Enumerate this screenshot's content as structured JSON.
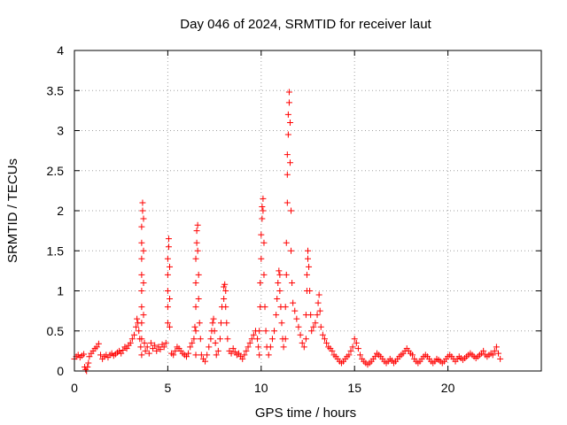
{
  "chart_data": {
    "type": "scatter",
    "title": "Day 046 of 2024, SRMTID for receiver laut",
    "xlabel": "GPS time / hours",
    "ylabel": "SRMTID / TECUs",
    "xlim": [
      0,
      25
    ],
    "ylim": [
      0,
      4
    ],
    "xticks": [
      0,
      5,
      10,
      15,
      20
    ],
    "xtick_labels": [
      "0",
      "5",
      "10",
      "15",
      "20"
    ],
    "yticks": [
      0,
      0.5,
      1,
      1.5,
      2,
      2.5,
      3,
      3.5,
      4
    ],
    "ytick_labels": [
      "0",
      "0.5",
      "1",
      "1.5",
      "2",
      "2.5",
      "3",
      "3.5",
      "4"
    ],
    "grid": true,
    "marker": "+",
    "color": "#ff0000",
    "series": [
      {
        "name": "SRMTID",
        "points": [
          [
            0.0,
            0.15
          ],
          [
            0.1,
            0.18
          ],
          [
            0.2,
            0.2
          ],
          [
            0.3,
            0.17
          ],
          [
            0.4,
            0.19
          ],
          [
            0.5,
            0.21
          ],
          [
            0.55,
            0.05
          ],
          [
            0.6,
            0.02
          ],
          [
            0.65,
            0.0
          ],
          [
            0.7,
            0.05
          ],
          [
            0.75,
            0.1
          ],
          [
            0.8,
            0.18
          ],
          [
            0.9,
            0.22
          ],
          [
            1.0,
            0.25
          ],
          [
            1.1,
            0.28
          ],
          [
            1.2,
            0.3
          ],
          [
            1.3,
            0.34
          ],
          [
            1.4,
            0.2
          ],
          [
            1.5,
            0.15
          ],
          [
            1.6,
            0.18
          ],
          [
            1.7,
            0.2
          ],
          [
            1.8,
            0.17
          ],
          [
            1.9,
            0.2
          ],
          [
            2.0,
            0.22
          ],
          [
            2.1,
            0.19
          ],
          [
            2.2,
            0.21
          ],
          [
            2.3,
            0.23
          ],
          [
            2.4,
            0.25
          ],
          [
            2.5,
            0.22
          ],
          [
            2.6,
            0.26
          ],
          [
            2.7,
            0.3
          ],
          [
            2.8,
            0.28
          ],
          [
            2.9,
            0.32
          ],
          [
            3.0,
            0.35
          ],
          [
            3.1,
            0.4
          ],
          [
            3.2,
            0.45
          ],
          [
            3.3,
            0.55
          ],
          [
            3.35,
            0.65
          ],
          [
            3.4,
            0.6
          ],
          [
            3.45,
            0.5
          ],
          [
            3.5,
            0.4
          ],
          [
            3.55,
            0.3
          ],
          [
            3.6,
            0.2
          ],
          [
            3.6,
            0.4
          ],
          [
            3.6,
            0.6
          ],
          [
            3.6,
            0.8
          ],
          [
            3.6,
            1.0
          ],
          [
            3.6,
            1.2
          ],
          [
            3.6,
            1.4
          ],
          [
            3.6,
            1.6
          ],
          [
            3.6,
            1.8
          ],
          [
            3.65,
            2.0
          ],
          [
            3.65,
            2.1
          ],
          [
            3.7,
            1.9
          ],
          [
            3.7,
            1.5
          ],
          [
            3.7,
            1.1
          ],
          [
            3.7,
            0.7
          ],
          [
            3.75,
            0.35
          ],
          [
            3.8,
            0.25
          ],
          [
            3.9,
            0.3
          ],
          [
            4.0,
            0.22
          ],
          [
            4.1,
            0.35
          ],
          [
            4.2,
            0.28
          ],
          [
            4.3,
            0.32
          ],
          [
            4.4,
            0.25
          ],
          [
            4.5,
            0.3
          ],
          [
            4.6,
            0.27
          ],
          [
            4.7,
            0.33
          ],
          [
            4.8,
            0.3
          ],
          [
            4.9,
            0.35
          ],
          [
            5.0,
            0.6
          ],
          [
            5.0,
            0.8
          ],
          [
            5.0,
            1.0
          ],
          [
            5.0,
            1.2
          ],
          [
            5.0,
            1.4
          ],
          [
            5.05,
            1.55
          ],
          [
            5.05,
            1.65
          ],
          [
            5.1,
            1.3
          ],
          [
            5.1,
            0.9
          ],
          [
            5.1,
            0.55
          ],
          [
            5.2,
            0.22
          ],
          [
            5.3,
            0.2
          ],
          [
            5.4,
            0.25
          ],
          [
            5.5,
            0.3
          ],
          [
            5.6,
            0.28
          ],
          [
            5.7,
            0.25
          ],
          [
            5.8,
            0.22
          ],
          [
            5.9,
            0.2
          ],
          [
            6.0,
            0.18
          ],
          [
            6.1,
            0.22
          ],
          [
            6.2,
            0.3
          ],
          [
            6.3,
            0.35
          ],
          [
            6.4,
            0.4
          ],
          [
            6.45,
            0.55
          ],
          [
            6.5,
            0.2
          ],
          [
            6.5,
            0.5
          ],
          [
            6.5,
            0.8
          ],
          [
            6.5,
            1.1
          ],
          [
            6.5,
            1.4
          ],
          [
            6.55,
            1.6
          ],
          [
            6.55,
            1.75
          ],
          [
            6.6,
            1.82
          ],
          [
            6.6,
            1.5
          ],
          [
            6.65,
            1.2
          ],
          [
            6.65,
            0.9
          ],
          [
            6.7,
            0.6
          ],
          [
            6.75,
            0.4
          ],
          [
            6.8,
            0.2
          ],
          [
            6.9,
            0.15
          ],
          [
            7.0,
            0.12
          ],
          [
            7.1,
            0.2
          ],
          [
            7.2,
            0.3
          ],
          [
            7.3,
            0.4
          ],
          [
            7.35,
            0.5
          ],
          [
            7.4,
            0.6
          ],
          [
            7.45,
            0.65
          ],
          [
            7.5,
            0.5
          ],
          [
            7.55,
            0.35
          ],
          [
            7.6,
            0.2
          ],
          [
            7.7,
            0.25
          ],
          [
            7.8,
            0.4
          ],
          [
            7.85,
            0.6
          ],
          [
            7.9,
            0.8
          ],
          [
            8.0,
            0.9
          ],
          [
            8.0,
            1.05
          ],
          [
            8.05,
            1.08
          ],
          [
            8.1,
            1.0
          ],
          [
            8.1,
            0.8
          ],
          [
            8.15,
            0.6
          ],
          [
            8.2,
            0.4
          ],
          [
            8.3,
            0.25
          ],
          [
            8.4,
            0.22
          ],
          [
            8.5,
            0.28
          ],
          [
            8.6,
            0.24
          ],
          [
            8.7,
            0.2
          ],
          [
            8.8,
            0.22
          ],
          [
            8.9,
            0.18
          ],
          [
            9.0,
            0.15
          ],
          [
            9.1,
            0.2
          ],
          [
            9.2,
            0.25
          ],
          [
            9.3,
            0.3
          ],
          [
            9.4,
            0.35
          ],
          [
            9.5,
            0.4
          ],
          [
            9.6,
            0.45
          ],
          [
            9.7,
            0.5
          ],
          [
            9.8,
            0.4
          ],
          [
            9.85,
            0.3
          ],
          [
            9.9,
            0.2
          ],
          [
            9.9,
            0.5
          ],
          [
            9.95,
            0.8
          ],
          [
            9.95,
            1.1
          ],
          [
            10.0,
            1.4
          ],
          [
            10.0,
            1.7
          ],
          [
            10.05,
            1.9
          ],
          [
            10.05,
            2.05
          ],
          [
            10.1,
            2.15
          ],
          [
            10.1,
            2.0
          ],
          [
            10.15,
            1.6
          ],
          [
            10.15,
            1.2
          ],
          [
            10.2,
            0.8
          ],
          [
            10.25,
            0.5
          ],
          [
            10.3,
            0.3
          ],
          [
            10.4,
            0.2
          ],
          [
            10.5,
            0.3
          ],
          [
            10.6,
            0.4
          ],
          [
            10.7,
            0.5
          ],
          [
            10.8,
            0.7
          ],
          [
            10.85,
            0.9
          ],
          [
            10.9,
            1.1
          ],
          [
            10.95,
            1.25
          ],
          [
            11.0,
            1.2
          ],
          [
            11.0,
            1.0
          ],
          [
            11.05,
            0.8
          ],
          [
            11.1,
            0.6
          ],
          [
            11.15,
            0.4
          ],
          [
            11.2,
            0.3
          ],
          [
            11.3,
            0.4
          ],
          [
            11.3,
            0.8
          ],
          [
            11.35,
            1.2
          ],
          [
            11.35,
            1.6
          ],
          [
            11.4,
            2.1
          ],
          [
            11.4,
            2.45
          ],
          [
            11.4,
            2.7
          ],
          [
            11.45,
            2.95
          ],
          [
            11.45,
            3.2
          ],
          [
            11.5,
            3.35
          ],
          [
            11.5,
            3.48
          ],
          [
            11.55,
            3.1
          ],
          [
            11.55,
            2.6
          ],
          [
            11.6,
            2.0
          ],
          [
            11.6,
            1.5
          ],
          [
            11.65,
            1.1
          ],
          [
            11.7,
            0.85
          ],
          [
            11.8,
            0.75
          ],
          [
            11.9,
            0.65
          ],
          [
            12.0,
            0.55
          ],
          [
            12.1,
            0.45
          ],
          [
            12.2,
            0.35
          ],
          [
            12.3,
            0.3
          ],
          [
            12.4,
            0.4
          ],
          [
            12.4,
            0.7
          ],
          [
            12.45,
            1.0
          ],
          [
            12.45,
            1.2
          ],
          [
            12.5,
            1.4
          ],
          [
            12.5,
            1.5
          ],
          [
            12.55,
            1.3
          ],
          [
            12.6,
            1.0
          ],
          [
            12.65,
            0.7
          ],
          [
            12.7,
            0.5
          ],
          [
            12.8,
            0.55
          ],
          [
            12.9,
            0.6
          ],
          [
            13.0,
            0.7
          ],
          [
            13.05,
            0.85
          ],
          [
            13.1,
            0.95
          ],
          [
            13.15,
            0.75
          ],
          [
            13.2,
            0.55
          ],
          [
            13.3,
            0.45
          ],
          [
            13.4,
            0.4
          ],
          [
            13.5,
            0.35
          ],
          [
            13.6,
            0.3
          ],
          [
            13.7,
            0.28
          ],
          [
            13.8,
            0.25
          ],
          [
            13.9,
            0.2
          ],
          [
            14.0,
            0.18
          ],
          [
            14.1,
            0.15
          ],
          [
            14.2,
            0.12
          ],
          [
            14.3,
            0.1
          ],
          [
            14.4,
            0.12
          ],
          [
            14.5,
            0.15
          ],
          [
            14.6,
            0.18
          ],
          [
            14.7,
            0.2
          ],
          [
            14.8,
            0.25
          ],
          [
            14.9,
            0.3
          ],
          [
            15.0,
            0.4
          ],
          [
            15.1,
            0.35
          ],
          [
            15.2,
            0.28
          ],
          [
            15.3,
            0.2
          ],
          [
            15.4,
            0.15
          ],
          [
            15.5,
            0.12
          ],
          [
            15.6,
            0.1
          ],
          [
            15.7,
            0.08
          ],
          [
            15.8,
            0.1
          ],
          [
            15.9,
            0.12
          ],
          [
            16.0,
            0.15
          ],
          [
            16.1,
            0.18
          ],
          [
            16.2,
            0.22
          ],
          [
            16.3,
            0.2
          ],
          [
            16.4,
            0.18
          ],
          [
            16.5,
            0.15
          ],
          [
            16.6,
            0.12
          ],
          [
            16.7,
            0.1
          ],
          [
            16.8,
            0.12
          ],
          [
            16.9,
            0.15
          ],
          [
            17.0,
            0.13
          ],
          [
            17.1,
            0.1
          ],
          [
            17.2,
            0.12
          ],
          [
            17.3,
            0.15
          ],
          [
            17.4,
            0.18
          ],
          [
            17.5,
            0.2
          ],
          [
            17.6,
            0.22
          ],
          [
            17.7,
            0.25
          ],
          [
            17.8,
            0.28
          ],
          [
            17.9,
            0.25
          ],
          [
            18.0,
            0.22
          ],
          [
            18.1,
            0.2
          ],
          [
            18.2,
            0.15
          ],
          [
            18.3,
            0.12
          ],
          [
            18.4,
            0.1
          ],
          [
            18.5,
            0.12
          ],
          [
            18.6,
            0.15
          ],
          [
            18.7,
            0.18
          ],
          [
            18.8,
            0.2
          ],
          [
            18.9,
            0.18
          ],
          [
            19.0,
            0.15
          ],
          [
            19.1,
            0.12
          ],
          [
            19.2,
            0.1
          ],
          [
            19.3,
            0.12
          ],
          [
            19.4,
            0.15
          ],
          [
            19.5,
            0.14
          ],
          [
            19.6,
            0.12
          ],
          [
            19.7,
            0.1
          ],
          [
            19.8,
            0.12
          ],
          [
            19.9,
            0.15
          ],
          [
            20.0,
            0.18
          ],
          [
            20.1,
            0.2
          ],
          [
            20.2,
            0.18
          ],
          [
            20.3,
            0.15
          ],
          [
            20.4,
            0.12
          ],
          [
            20.5,
            0.15
          ],
          [
            20.6,
            0.18
          ],
          [
            20.7,
            0.16
          ],
          [
            20.8,
            0.14
          ],
          [
            20.9,
            0.16
          ],
          [
            21.0,
            0.18
          ],
          [
            21.1,
            0.2
          ],
          [
            21.2,
            0.22
          ],
          [
            21.3,
            0.2
          ],
          [
            21.4,
            0.18
          ],
          [
            21.5,
            0.16
          ],
          [
            21.6,
            0.18
          ],
          [
            21.7,
            0.2
          ],
          [
            21.8,
            0.22
          ],
          [
            21.9,
            0.25
          ],
          [
            22.0,
            0.2
          ],
          [
            22.1,
            0.18
          ],
          [
            22.2,
            0.2
          ],
          [
            22.3,
            0.22
          ],
          [
            22.4,
            0.2
          ],
          [
            22.5,
            0.25
          ],
          [
            22.6,
            0.3
          ],
          [
            22.7,
            0.22
          ],
          [
            22.8,
            0.15
          ]
        ]
      }
    ]
  }
}
